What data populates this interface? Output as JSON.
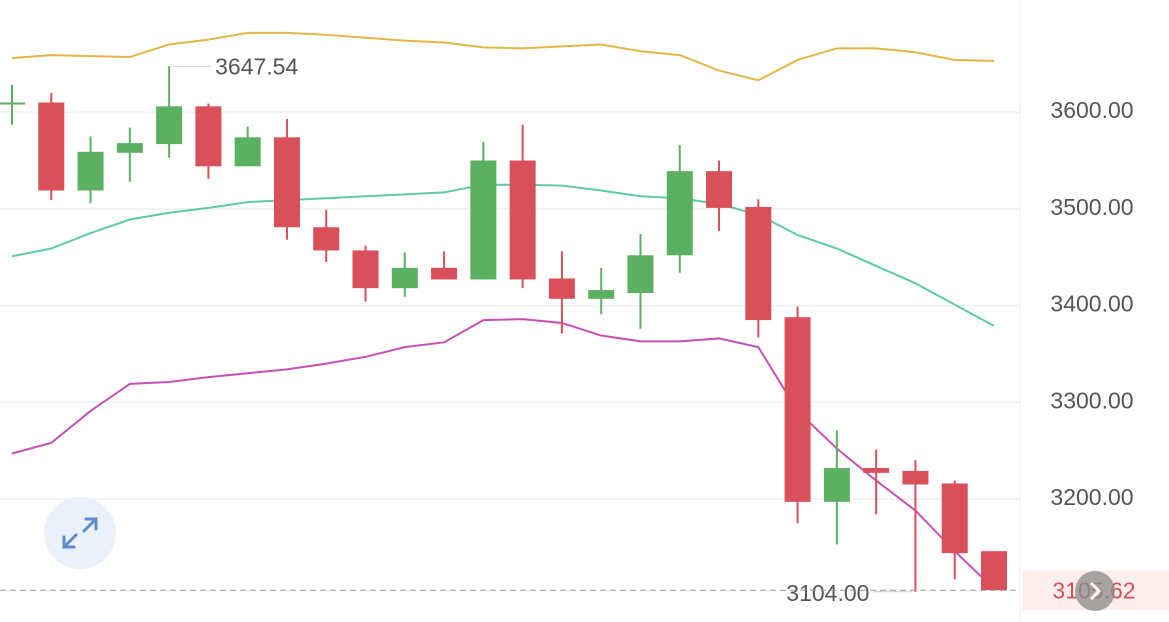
{
  "chart_data": {
    "type": "candlestick",
    "open": [
      3608,
      3610,
      3519,
      3558,
      3567,
      3606,
      3544,
      3574,
      3481,
      3457,
      3418,
      3439,
      3427,
      3550,
      3428,
      3407,
      3413,
      3452,
      3539,
      3502,
      3388,
      3197,
      3232,
      3229,
      3216,
      3146
    ],
    "high": [
      3628,
      3620,
      3575,
      3584,
      3647.54,
      3609,
      3585,
      3593,
      3499,
      3462,
      3455,
      3456,
      3569,
      3587,
      3456,
      3439,
      3474,
      3566,
      3550,
      3510,
      3399,
      3271,
      3251,
      3240,
      3219,
      3146
    ],
    "low": [
      3587,
      3509,
      3506,
      3528,
      3553,
      3531,
      3544,
      3468,
      3445,
      3404,
      3409,
      3427,
      3427,
      3418,
      3371,
      3391,
      3376,
      3434,
      3477,
      3367,
      3175,
      3153,
      3184,
      3104,
      3117,
      3105.62
    ],
    "close": [
      3610,
      3519,
      3559,
      3568,
      3606,
      3544,
      3574,
      3481,
      3457,
      3418,
      3439,
      3427,
      3550,
      3427,
      3407,
      3416,
      3452,
      3539,
      3501,
      3385,
      3197,
      3232,
      3227,
      3215,
      3144,
      3105.62
    ],
    "up_color": "#5cb062",
    "down_color": "#d9505a",
    "lines": [
      {
        "color": "#e6b545",
        "values": [
          3656,
          3659,
          3658,
          3657,
          3670,
          3675,
          3682,
          3682,
          3680,
          3677,
          3674,
          3672,
          3667,
          3666,
          3668,
          3670,
          3663,
          3659,
          3643,
          3633,
          3654,
          3666,
          3666,
          3662,
          3654,
          3653
        ]
      },
      {
        "color": "#5ecaa9",
        "values": [
          3451,
          3459,
          3475,
          3489,
          3496,
          3501,
          3507,
          3509,
          3511,
          3513,
          3515,
          3517,
          3525,
          3525,
          3524,
          3519,
          3513,
          3511,
          3505,
          3494,
          3473,
          3459,
          3441,
          3423,
          3401,
          3379
        ]
      },
      {
        "color": "#c94fb6",
        "values": [
          3247,
          3258,
          3291,
          3319,
          3321,
          3326,
          3330,
          3334,
          3340,
          3347,
          3357,
          3362,
          3385,
          3386,
          3382,
          3369,
          3363,
          3363,
          3366,
          3357,
          3291,
          3252,
          3219,
          3188,
          3146,
          3107
        ]
      }
    ],
    "annotations": [
      {
        "value": 3104,
        "label": "3104.00"
      }
    ],
    "ylim": [
      3080,
      3716
    ],
    "yticks": [
      {
        "value": 3200,
        "label": "3200.00"
      },
      {
        "value": 3300,
        "label": "3300.00"
      },
      {
        "value": 3400,
        "label": "3400.00"
      },
      {
        "value": 3500,
        "label": "3500.00"
      },
      {
        "value": 3600,
        "label": "3600.00"
      }
    ],
    "grid": true
  }
}
